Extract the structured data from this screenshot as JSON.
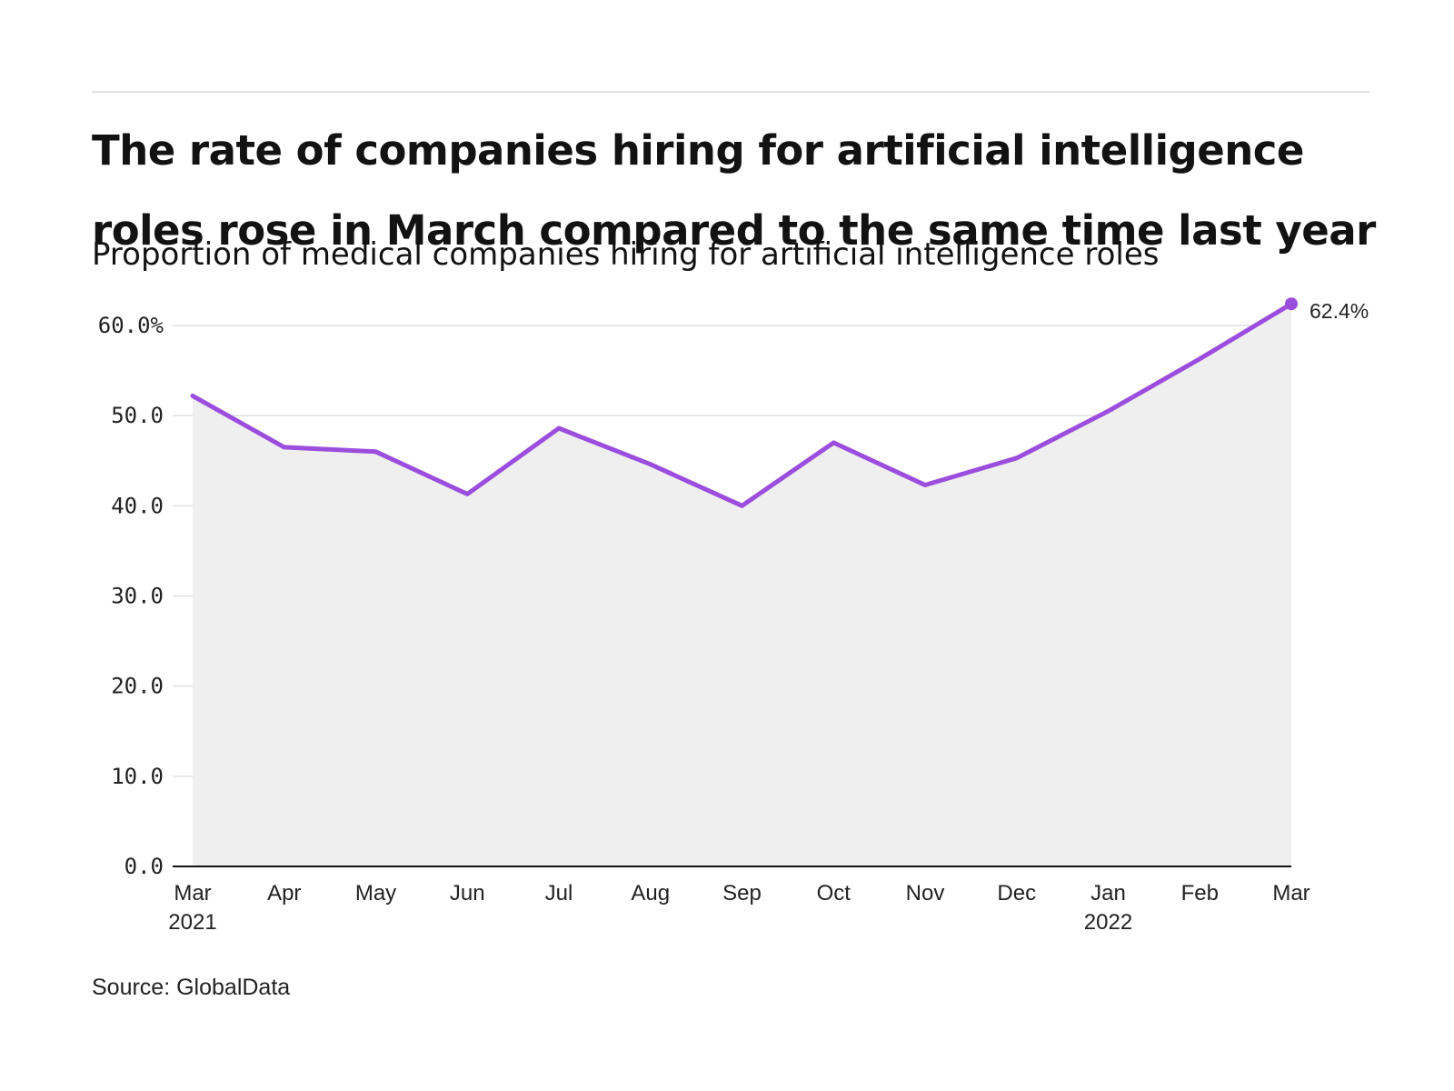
{
  "title": "The rate of companies hiring for artificial intelligence roles rose in March compared to the same time last year",
  "subtitle": "Proportion of medical companies hiring for artificial intelligence roles",
  "source": "Source: GlobalData",
  "chart_data": {
    "type": "area",
    "title": "The rate of companies hiring for artificial intelligence roles rose in March compared to the same time last year",
    "subtitle": "Proportion of medical companies hiring for artificial intelligence roles",
    "xlabel": "",
    "ylabel": "",
    "categories": [
      "Mar 2021",
      "Apr 2021",
      "May 2021",
      "Jun 2021",
      "Jul 2021",
      "Aug 2021",
      "Sep 2021",
      "Oct 2021",
      "Nov 2021",
      "Dec 2021",
      "Jan 2022",
      "Feb 2022",
      "Mar 2022"
    ],
    "x_tick_labels": [
      {
        "month": "Mar",
        "year": "2021"
      },
      {
        "month": "Apr",
        "year": ""
      },
      {
        "month": "May",
        "year": ""
      },
      {
        "month": "Jun",
        "year": ""
      },
      {
        "month": "Jul",
        "year": ""
      },
      {
        "month": "Aug",
        "year": ""
      },
      {
        "month": "Sep",
        "year": ""
      },
      {
        "month": "Oct",
        "year": ""
      },
      {
        "month": "Nov",
        "year": ""
      },
      {
        "month": "Dec",
        "year": ""
      },
      {
        "month": "Jan",
        "year": "2022"
      },
      {
        "month": "Feb",
        "year": ""
      },
      {
        "month": "Mar",
        "year": ""
      }
    ],
    "values": [
      52.2,
      46.5,
      46.0,
      41.3,
      48.6,
      44.6,
      40.0,
      47.0,
      42.3,
      45.3,
      50.5,
      56.3,
      62.4
    ],
    "ylim": [
      0,
      60
    ],
    "y_ticks": [
      0,
      10,
      20,
      30,
      40,
      50,
      60
    ],
    "y_tick_labels": [
      "0.0",
      "10.0",
      "20.0",
      "30.0",
      "40.0",
      "50.0",
      "60.0%"
    ],
    "end_label": "62.4%",
    "grid": true,
    "legend": "none",
    "colors": {
      "line": "#9b4ddd",
      "area": "#efefef",
      "grid": "#e0e0e0",
      "axis": "#111111"
    }
  }
}
